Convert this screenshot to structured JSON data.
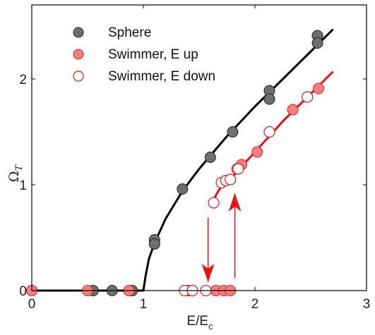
{
  "chart_data": {
    "type": "scatter",
    "xlabel": "E/E",
    "xlabel_subscript": "c",
    "ylabel": "Ω",
    "ylabel_subscript": "T",
    "xlim": [
      0,
      3
    ],
    "ylim": [
      0,
      2.7
    ],
    "xticks": [
      0,
      1,
      2,
      3
    ],
    "xtick_labels": [
      "0",
      "1",
      "2",
      "3"
    ],
    "yticks": [
      0,
      1,
      2
    ],
    "ytick_labels": [
      "0",
      "1",
      "2"
    ],
    "grid": false,
    "legend_position": "top-left",
    "colors": {
      "sphere_fill": "#6e6e6e",
      "swimmer_fill": "#f57f7f",
      "swimmer_edge": "#e11b1b",
      "sphere_curve": "#000000",
      "swimmer_curve": "#ee1111",
      "arrow": "#ee1111"
    },
    "series": [
      {
        "name": "Sphere",
        "marker": "filled-gray-circle",
        "points": [
          [
            0.0,
            0.0
          ],
          [
            0.55,
            0.0
          ],
          [
            0.72,
            0.0
          ],
          [
            0.9,
            0.0
          ],
          [
            1.1,
            0.48
          ],
          [
            1.1,
            0.44
          ],
          [
            1.35,
            0.96
          ],
          [
            1.6,
            1.26
          ],
          [
            1.8,
            1.5
          ],
          [
            2.13,
            1.89
          ],
          [
            2.13,
            1.81
          ],
          [
            2.56,
            2.41
          ],
          [
            2.56,
            2.34
          ]
        ]
      },
      {
        "name": "Swimmer, E up",
        "marker": "filled-red-circle",
        "points": [
          [
            0.0,
            0.0
          ],
          [
            0.5,
            0.0
          ],
          [
            0.87,
            0.0
          ],
          [
            1.4,
            0.0
          ],
          [
            1.65,
            0.0
          ],
          [
            1.72,
            0.0
          ],
          [
            1.78,
            0.0
          ],
          [
            1.84,
            1.15
          ],
          [
            1.88,
            1.19
          ],
          [
            2.02,
            1.31
          ],
          [
            2.34,
            1.71
          ],
          [
            2.57,
            1.91
          ]
        ]
      },
      {
        "name": "Swimmer, E down",
        "marker": "open-red-circle",
        "points": [
          [
            1.37,
            0.0
          ],
          [
            1.44,
            0.0
          ],
          [
            1.56,
            0.0
          ],
          [
            1.63,
            0.83
          ],
          [
            1.7,
            1.02
          ],
          [
            1.74,
            1.04
          ],
          [
            1.78,
            1.05
          ],
          [
            1.85,
            1.15
          ],
          [
            2.13,
            1.5
          ],
          [
            2.47,
            1.83
          ]
        ]
      }
    ],
    "fit_curves": [
      {
        "for": "Sphere",
        "color": "#000000",
        "points": [
          [
            0,
            0
          ],
          [
            1.0,
            0
          ],
          [
            1.02,
            0.14
          ],
          [
            1.05,
            0.3
          ],
          [
            1.1,
            0.45
          ],
          [
            1.2,
            0.68
          ],
          [
            1.35,
            0.94
          ],
          [
            1.5,
            1.15
          ],
          [
            1.75,
            1.46
          ],
          [
            2.0,
            1.74
          ],
          [
            2.25,
            2.0
          ],
          [
            2.5,
            2.26
          ],
          [
            2.7,
            2.47
          ]
        ]
      },
      {
        "for": "Swimmer",
        "color": "#ee1111",
        "points": [
          [
            1.62,
            0.83
          ],
          [
            1.65,
            0.9
          ],
          [
            1.7,
            0.99
          ],
          [
            1.8,
            1.08
          ],
          [
            2.0,
            1.31
          ],
          [
            2.25,
            1.6
          ],
          [
            2.5,
            1.86
          ],
          [
            2.7,
            2.07
          ]
        ]
      }
    ],
    "annotations": [
      {
        "type": "arrow",
        "direction": "down",
        "color": "#ee1111",
        "x": 1.58,
        "y_from": 0.69,
        "y_to": 0.08
      },
      {
        "type": "arrow",
        "direction": "up",
        "color": "#ee1111",
        "x": 1.82,
        "y_from": 0.12,
        "y_to": 0.92
      }
    ]
  }
}
